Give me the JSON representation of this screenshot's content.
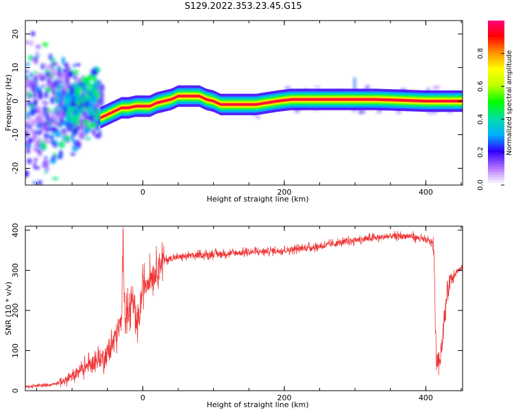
{
  "title": "S129.2022.353.23.45.G15",
  "chart_data": [
    {
      "type": "heatmap",
      "xlabel": "Height of straight line (km)",
      "ylabel": "Frequency (Hz)",
      "xlim": [
        -166,
        452
      ],
      "ylim": [
        -25,
        24
      ],
      "x_ticks": [
        0,
        200,
        400
      ],
      "y_ticks": [
        20,
        10,
        0,
        -10,
        -20
      ],
      "colorbar": {
        "label": "Normalized spectral amplitude",
        "range": [
          0,
          1
        ],
        "ticks": [
          "0.0",
          "0.2",
          "0.4",
          "0.6",
          "0.8"
        ],
        "colors": [
          "#ffffff",
          "#b070ff",
          "#3000ff",
          "#00b0ff",
          "#00e0a0",
          "#00ff00",
          "#c0ff00",
          "#ffff00",
          "#ff9000",
          "#ff0000",
          "#ff0080"
        ]
      },
      "ridge": {
        "x": [
          -60,
          -50,
          -40,
          -30,
          -20,
          -10,
          0,
          10,
          20,
          30,
          40,
          50,
          60,
          70,
          80,
          90,
          100,
          110,
          120,
          140,
          160,
          175,
          190,
          210,
          240,
          270,
          300,
          330,
          360,
          400,
          452
        ],
        "freq": [
          -5,
          -4,
          -3,
          -2,
          -2,
          -1.5,
          -1.5,
          -1.5,
          -0.5,
          0,
          0.5,
          1.5,
          1.5,
          1.5,
          1.5,
          0.5,
          0,
          -1,
          -1,
          -1,
          -1,
          -0.5,
          0,
          0.5,
          0.5,
          0.5,
          0.5,
          0.5,
          0.3,
          0,
          0
        ]
      }
    },
    {
      "type": "line",
      "xlabel": "Height of straight line (km)",
      "ylabel": "SNR (10 * v/v)",
      "xlim": [
        -166,
        452
      ],
      "ylim": [
        0,
        410
      ],
      "x_ticks": [
        0,
        200,
        400
      ],
      "y_ticks": [
        0,
        100,
        200,
        300,
        400
      ],
      "color": "#ee3333",
      "series": [
        {
          "x": [
            -166,
            -150,
            -130,
            -110,
            -100,
            -90,
            -80,
            -70,
            -60,
            -55,
            -50,
            -45,
            -40,
            -35,
            -30,
            -28,
            -25,
            -22,
            -20,
            -15,
            -10,
            -5,
            0,
            5,
            10,
            15,
            20,
            25,
            30,
            40,
            60,
            100,
            150,
            200,
            250,
            300,
            350,
            380,
            400,
            410,
            412,
            415,
            420,
            425,
            430,
            435,
            440,
            445,
            452
          ],
          "y": [
            10,
            12,
            15,
            25,
            35,
            50,
            60,
            70,
            80,
            85,
            95,
            110,
            130,
            150,
            170,
            400,
            180,
            200,
            190,
            230,
            160,
            180,
            260,
            270,
            285,
            290,
            305,
            320,
            325,
            330,
            335,
            340,
            345,
            350,
            360,
            375,
            385,
            385,
            375,
            370,
            300,
            70,
            80,
            150,
            250,
            280,
            290,
            300,
            305
          ]
        }
      ]
    }
  ]
}
